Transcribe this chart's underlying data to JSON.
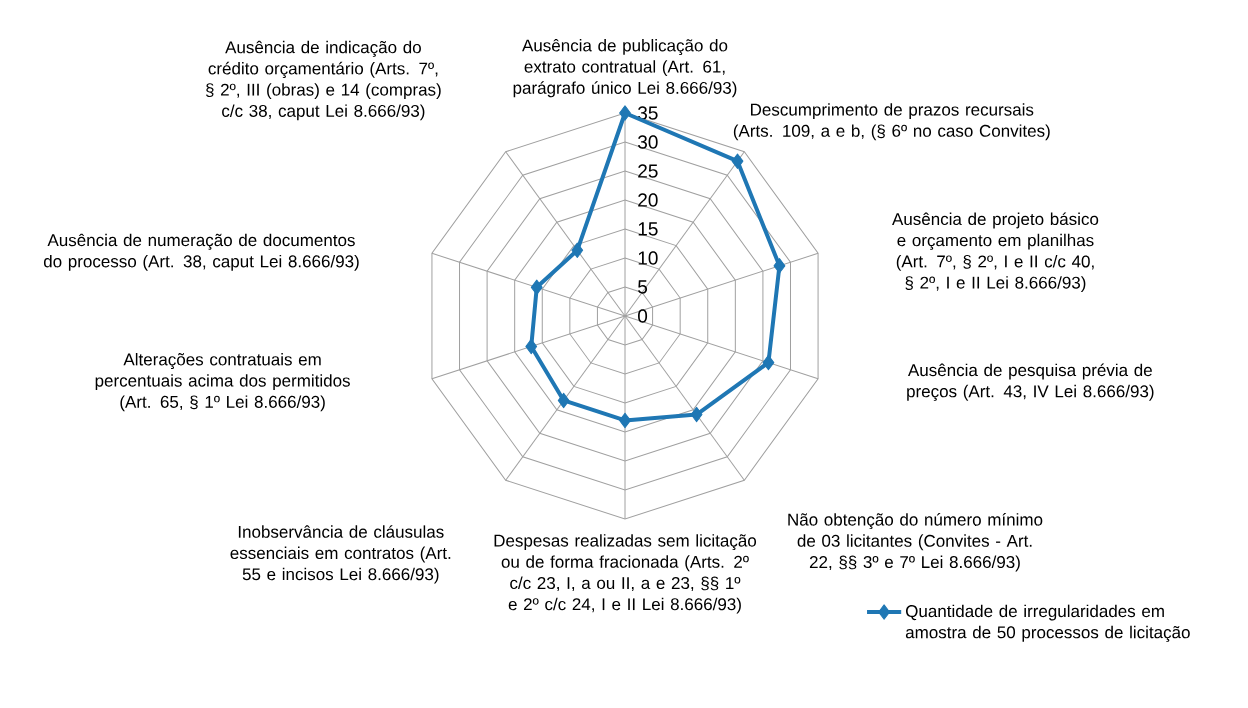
{
  "chart_data": {
    "type": "radar",
    "categories": [
      "Ausência de publicação do extrato contratual (Art. 61, parágrafo único Lei 8.666/93)",
      "Descumprimento de prazos recursais (Arts. 109, a e b, (§ 6º no caso Convites)",
      "Ausência de projeto básico e orçamento em planilhas (Art. 7º, § 2º, I e II c/c 40, § 2º, I e II Lei 8.666/93)",
      "Ausência de pesquisa prévia de preços (Art. 43, IV Lei 8.666/93)",
      "Não obtenção do número mínimo de 03 licitantes (Convites - Art. 22, §§ 3º e 7º Lei 8.666/93)",
      "Despesas realizadas sem licitação ou de forma fracionada (Arts. 2º c/c 23, I, a ou II, a e 23, §§ 1º e 2º c/c 24, I e II Lei 8.666/93)",
      "Inobservância de cláusulas essenciais em contratos (Art. 55 e incisos Lei 8.666/93)",
      "Alterações contratuais em percentuais acima dos permitidos (Art. 65, § 1º Lei 8.666/93)",
      "Ausência de numeração de documentos do processo (Art. 38, caput Lei 8.666/93)",
      "Ausência de indicação do crédito orçamentário (Arts. 7º, § 2º, III (obras) e 14 (compras) c/c 38, caput Lei 8.666/93)"
    ],
    "series": [
      {
        "name": "Quantidade de irregularidades em amostra de 50 processos de licitação",
        "color": "#1f77b4",
        "values": [
          35,
          33,
          28,
          26,
          21,
          18,
          18,
          17,
          16,
          14
        ]
      }
    ],
    "ylim": [
      0,
      35
    ],
    "yticks": [
      0,
      5,
      10,
      15,
      20,
      25,
      30,
      35
    ],
    "grid": true,
    "marker": "diamond",
    "legend": "bottom right"
  }
}
